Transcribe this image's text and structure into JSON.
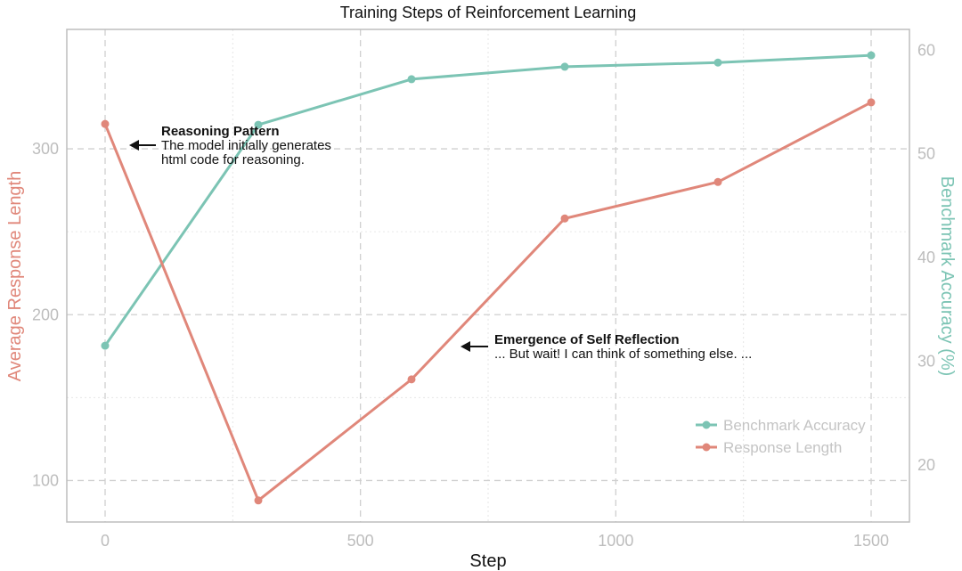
{
  "chart_data": {
    "type": "line",
    "title": "Training Steps of Reinforcement Learning",
    "xlabel": "Step",
    "ylabel_left": "Average Response Length",
    "ylabel_right": "Benchmark Accuracy (%)",
    "x": [
      0,
      300,
      600,
      900,
      1200,
      1500
    ],
    "xlim": [
      -75,
      1575
    ],
    "xticks": [
      0,
      500,
      1000,
      1500
    ],
    "ylim_left": [
      75,
      372
    ],
    "yticks_left": [
      100,
      200,
      300
    ],
    "ylim_right": [
      14.5,
      62
    ],
    "yticks_right": [
      20,
      30,
      40,
      50,
      60
    ],
    "grid": true,
    "legend_position": "bottom-right",
    "series": [
      {
        "name": "Benchmark Accuracy",
        "axis": "right",
        "color": "#7cc4b4",
        "values": [
          31.5,
          52.8,
          57.2,
          58.4,
          58.8,
          59.5
        ]
      },
      {
        "name": "Response Length",
        "axis": "left",
        "color": "#e0877a",
        "values": [
          315,
          88,
          161,
          258,
          280,
          328
        ]
      }
    ],
    "annotations": [
      {
        "title": "Reasoning Pattern",
        "lines": [
          "The model initially generates",
          "html code for reasoning."
        ]
      },
      {
        "title": "Emergence of Self Reflection",
        "lines": [
          "... But wait! I can think of something else. ..."
        ]
      }
    ]
  }
}
